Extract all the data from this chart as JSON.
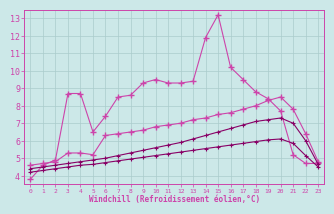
{
  "bg_color": "#cce8e8",
  "grid_color": "#aacccc",
  "line_color": "#cc44aa",
  "line_color2": "#880066",
  "xlabel": "Windchill (Refroidissement éolien,°C)",
  "xlim": [
    -0.5,
    23.5
  ],
  "ylim": [
    3.5,
    13.5
  ],
  "yticks": [
    4,
    5,
    6,
    7,
    8,
    9,
    10,
    11,
    12,
    13
  ],
  "xticks": [
    0,
    1,
    2,
    3,
    4,
    5,
    6,
    7,
    8,
    9,
    10,
    11,
    12,
    13,
    14,
    15,
    16,
    17,
    18,
    19,
    20,
    21,
    22,
    23
  ],
  "series1_x": [
    0,
    1,
    2,
    3,
    4,
    5,
    6,
    7,
    8,
    9,
    10,
    11,
    12,
    13,
    14,
    15,
    16,
    17,
    18,
    19,
    20,
    21,
    22,
    23
  ],
  "series1_y": [
    3.8,
    4.6,
    4.9,
    8.7,
    8.7,
    6.5,
    7.4,
    8.5,
    8.6,
    9.3,
    9.5,
    9.3,
    9.3,
    9.4,
    11.9,
    13.2,
    10.2,
    9.5,
    8.8,
    8.4,
    7.7,
    5.2,
    4.7,
    4.7
  ],
  "series2_x": [
    0,
    1,
    2,
    3,
    4,
    5,
    6,
    7,
    8,
    9,
    10,
    11,
    12,
    13,
    14,
    15,
    16,
    17,
    18,
    19,
    20,
    21,
    22,
    23
  ],
  "series2_y": [
    4.6,
    4.7,
    4.8,
    5.3,
    5.3,
    5.2,
    6.3,
    6.4,
    6.5,
    6.6,
    6.8,
    6.9,
    7.0,
    7.2,
    7.3,
    7.5,
    7.6,
    7.8,
    8.0,
    8.3,
    8.5,
    7.8,
    6.4,
    4.8
  ],
  "series3_x": [
    0,
    1,
    2,
    3,
    4,
    5,
    6,
    7,
    8,
    9,
    10,
    11,
    12,
    13,
    14,
    15,
    16,
    17,
    18,
    19,
    20,
    21,
    22,
    23
  ],
  "series3_y": [
    4.4,
    4.5,
    4.6,
    4.7,
    4.8,
    4.9,
    5.0,
    5.15,
    5.3,
    5.45,
    5.6,
    5.75,
    5.9,
    6.1,
    6.3,
    6.5,
    6.7,
    6.9,
    7.1,
    7.2,
    7.3,
    7.0,
    6.0,
    4.65
  ],
  "series4_x": [
    0,
    1,
    2,
    3,
    4,
    5,
    6,
    7,
    8,
    9,
    10,
    11,
    12,
    13,
    14,
    15,
    16,
    17,
    18,
    19,
    20,
    21,
    22,
    23
  ],
  "series4_y": [
    4.2,
    4.3,
    4.4,
    4.5,
    4.6,
    4.65,
    4.75,
    4.85,
    4.95,
    5.05,
    5.15,
    5.25,
    5.35,
    5.45,
    5.55,
    5.65,
    5.75,
    5.85,
    5.95,
    6.05,
    6.1,
    5.85,
    5.15,
    4.5
  ]
}
